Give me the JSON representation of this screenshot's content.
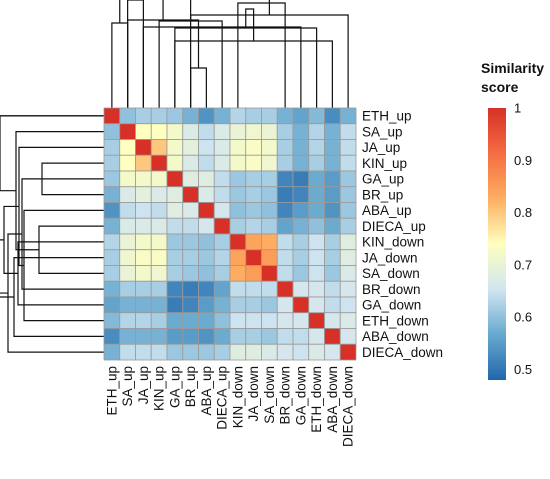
{
  "chart_data": {
    "type": "heatmap",
    "title": "",
    "rows": [
      "ETH_up",
      "SA_up",
      "JA_up",
      "KIN_up",
      "GA_up",
      "BR_up",
      "ABA_up",
      "DIECA_up",
      "KIN_down",
      "JA_down",
      "SA_down",
      "BR_down",
      "GA_down",
      "ETH_down",
      "ABA_down",
      "DIECA_down"
    ],
    "cols": [
      "ETH_up",
      "SA_up",
      "JA_up",
      "KIN_up",
      "GA_up",
      "BR_up",
      "ABA_up",
      "DIECA_up",
      "KIN_down",
      "JA_down",
      "SA_down",
      "BR_down",
      "GA_down",
      "ETH_down",
      "ABA_down",
      "DIECA_down"
    ],
    "values": [
      [
        1.0,
        0.6,
        0.62,
        0.62,
        0.61,
        0.58,
        0.54,
        0.58,
        0.63,
        0.62,
        0.62,
        0.58,
        0.56,
        0.59,
        0.53,
        0.58
      ],
      [
        0.6,
        1.0,
        0.74,
        0.74,
        0.72,
        0.67,
        0.64,
        0.67,
        0.7,
        0.71,
        0.7,
        0.62,
        0.58,
        0.63,
        0.58,
        0.64
      ],
      [
        0.62,
        0.74,
        1.0,
        0.8,
        0.72,
        0.69,
        0.65,
        0.67,
        0.72,
        0.73,
        0.72,
        0.62,
        0.58,
        0.63,
        0.58,
        0.64
      ],
      [
        0.62,
        0.74,
        0.8,
        1.0,
        0.72,
        0.67,
        0.64,
        0.67,
        0.72,
        0.73,
        0.71,
        0.62,
        0.58,
        0.62,
        0.58,
        0.64
      ],
      [
        0.61,
        0.72,
        0.72,
        0.72,
        1.0,
        0.68,
        0.68,
        0.64,
        0.61,
        0.62,
        0.62,
        0.52,
        0.51,
        0.57,
        0.55,
        0.61
      ],
      [
        0.58,
        0.67,
        0.69,
        0.67,
        0.68,
        1.0,
        0.67,
        0.64,
        0.61,
        0.62,
        0.61,
        0.51,
        0.52,
        0.57,
        0.55,
        0.61
      ],
      [
        0.54,
        0.64,
        0.65,
        0.64,
        0.68,
        0.67,
        1.0,
        0.66,
        0.6,
        0.61,
        0.6,
        0.52,
        0.55,
        0.57,
        0.54,
        0.61
      ],
      [
        0.58,
        0.67,
        0.67,
        0.67,
        0.64,
        0.64,
        0.66,
        1.0,
        0.62,
        0.63,
        0.62,
        0.56,
        0.58,
        0.6,
        0.57,
        0.62
      ],
      [
        0.63,
        0.7,
        0.72,
        0.72,
        0.61,
        0.61,
        0.6,
        0.62,
        1.0,
        0.84,
        0.83,
        0.64,
        0.62,
        0.65,
        0.62,
        0.68
      ],
      [
        0.62,
        0.71,
        0.73,
        0.73,
        0.62,
        0.62,
        0.61,
        0.63,
        0.84,
        1.0,
        0.85,
        0.64,
        0.62,
        0.65,
        0.62,
        0.68
      ],
      [
        0.62,
        0.7,
        0.72,
        0.71,
        0.62,
        0.61,
        0.6,
        0.62,
        0.83,
        0.85,
        1.0,
        0.64,
        0.61,
        0.65,
        0.61,
        0.67
      ],
      [
        0.58,
        0.62,
        0.62,
        0.62,
        0.52,
        0.51,
        0.52,
        0.56,
        0.64,
        0.64,
        0.64,
        1.0,
        0.66,
        0.66,
        0.64,
        0.66
      ],
      [
        0.56,
        0.58,
        0.58,
        0.58,
        0.51,
        0.52,
        0.55,
        0.58,
        0.62,
        0.62,
        0.61,
        0.66,
        1.0,
        0.66,
        0.64,
        0.65
      ],
      [
        0.59,
        0.63,
        0.63,
        0.62,
        0.57,
        0.57,
        0.57,
        0.6,
        0.65,
        0.65,
        0.65,
        0.66,
        0.66,
        1.0,
        0.66,
        0.67
      ],
      [
        0.53,
        0.58,
        0.58,
        0.58,
        0.55,
        0.55,
        0.54,
        0.57,
        0.62,
        0.62,
        0.61,
        0.64,
        0.64,
        0.66,
        1.0,
        0.66
      ],
      [
        0.58,
        0.64,
        0.64,
        0.64,
        0.61,
        0.61,
        0.61,
        0.62,
        0.68,
        0.68,
        0.67,
        0.66,
        0.65,
        0.67,
        0.66,
        1.0
      ]
    ],
    "colorbar": {
      "title_line1": "Similarity",
      "title_line2": "score",
      "range": [
        0.48,
        1.0
      ],
      "ticks": [
        "1",
        "0.9",
        "0.8",
        "0.7",
        "0.6",
        "0.5"
      ],
      "colors": [
        "#2166ac",
        "#67a9cf",
        "#d1e5f0",
        "#ffffbf",
        "#fdae61",
        "#f46d43",
        "#d73027"
      ]
    },
    "legend_position": "right"
  }
}
